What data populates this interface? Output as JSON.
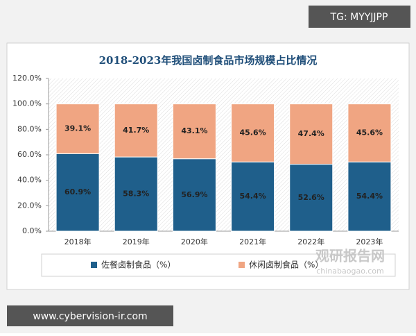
{
  "overlays": [
    "TG: MYYJJPP",
    "www.cybervision-ir.com"
  ],
  "chart_data": {
    "type": "stacked-bar",
    "title": "2018-2023年我国卤制食品市场规模占比情况",
    "categories": [
      "2018年",
      "2019年",
      "2020年",
      "2021年",
      "2022年",
      "2023年"
    ],
    "series": [
      {
        "name": "佐餐卤制食品（%）",
        "color": "#1f5f8b",
        "values": [
          60.9,
          58.3,
          56.9,
          54.4,
          52.6,
          54.4
        ],
        "value_labels": [
          "60.9%",
          "58.3%",
          "56.9%",
          "54.4%",
          "52.6%",
          "54.4%"
        ]
      },
      {
        "name": "休闲卤制食品（%）",
        "color": "#f0a582",
        "values": [
          39.1,
          41.7,
          43.1,
          45.6,
          47.4,
          45.6
        ],
        "value_labels": [
          "39.1%",
          "41.7%",
          "43.1%",
          "45.6%",
          "47.4%",
          "45.6%"
        ]
      }
    ],
    "ylim": [
      0,
      120
    ],
    "yticks": [
      {
        "value": 0,
        "label": "0.0%"
      },
      {
        "value": 20,
        "label": "20.0%"
      },
      {
        "value": 40,
        "label": "40.0%"
      },
      {
        "value": 60,
        "label": "60.0%"
      },
      {
        "value": 80,
        "label": "80.0%"
      },
      {
        "value": 100,
        "label": "100.0%"
      },
      {
        "value": 120,
        "label": "120.0%"
      }
    ],
    "legend": "bottom",
    "annotations": [
      "观研报告网",
      "chinabaogao.com"
    ]
  }
}
